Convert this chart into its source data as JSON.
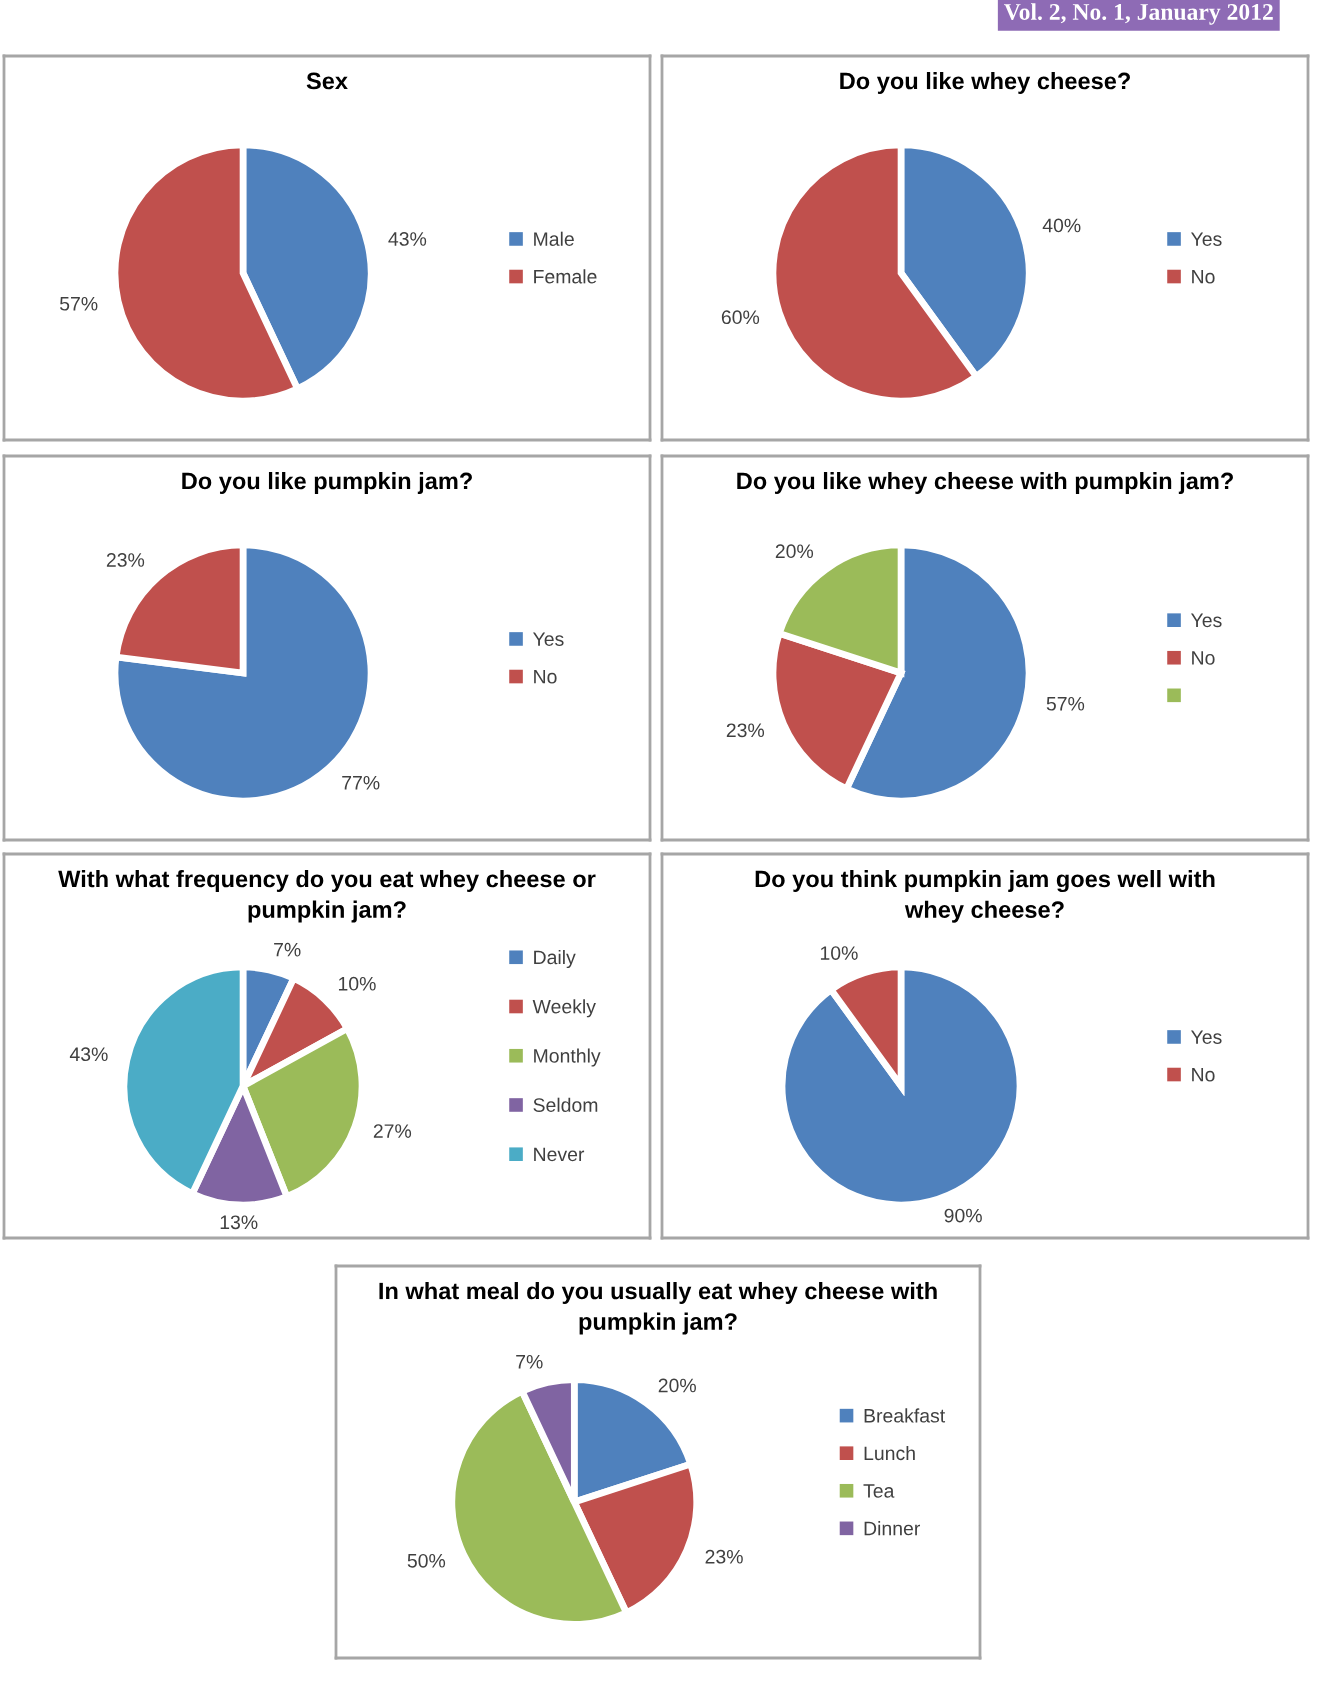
{
  "chart_data": [
    {
      "type": "pie",
      "title": "Sex",
      "categories": [
        "Male",
        "Female"
      ],
      "values": [
        43,
        57
      ],
      "colors": [
        "#4f81bd",
        "#c0504d"
      ],
      "value_labels": [
        "43%",
        "57%"
      ],
      "legend": "right",
      "annotations": [
        "Vol. 2, No. 1, January 2012"
      ]
    },
    {
      "type": "pie",
      "title": "Do you like whey cheese?",
      "categories": [
        "Yes",
        "No"
      ],
      "values": [
        40,
        60
      ],
      "colors": [
        "#4f81bd",
        "#c0504d"
      ],
      "value_labels": [
        "40%",
        "60%"
      ],
      "legend": "right"
    },
    {
      "type": "pie",
      "title": "Do you like pumpkin jam?",
      "categories": [
        "Yes",
        "No"
      ],
      "values": [
        77,
        23
      ],
      "colors": [
        "#4f81bd",
        "#c0504d"
      ],
      "value_labels": [
        "77%",
        "23%"
      ],
      "legend": "right"
    },
    {
      "type": "pie",
      "title": "Do you like whey cheese with pumpkin jam?",
      "categories": [
        "Yes",
        "No",
        null
      ],
      "values": [
        57,
        23,
        20
      ],
      "colors": [
        "#4f81bd",
        "#c0504d",
        "#9bbb59"
      ],
      "value_labels": [
        "57%",
        "23%",
        "20%"
      ],
      "legend": "right"
    },
    {
      "type": "pie",
      "title": "With what frequency do you eat whey cheese or\npumpkin jam?",
      "categories": [
        "Daily",
        "Weekly",
        "Monthly",
        "Seldom",
        "Never"
      ],
      "values": [
        7,
        10,
        27,
        13,
        43
      ],
      "colors": [
        "#4f81bd",
        "#c0504d",
        "#9bbb59",
        "#8064a2",
        "#4bacc6"
      ],
      "value_labels": [
        "7%",
        "10%",
        "27%",
        "13%",
        "43%"
      ],
      "legend": "right"
    },
    {
      "type": "pie",
      "title": "Do you think pumpkin jam goes well with\nwhey cheese?",
      "categories": [
        "Yes",
        "No"
      ],
      "values": [
        90,
        10
      ],
      "colors": [
        "#4f81bd",
        "#c0504d"
      ],
      "value_labels": [
        "90%",
        "10%"
      ],
      "legend": "right"
    },
    {
      "type": "pie",
      "title": "In what meal do you usually eat whey cheese with\npumpkin jam?",
      "categories": [
        "Breakfast",
        "Lunch",
        "Tea",
        "Dinner"
      ],
      "values": [
        20,
        23,
        50,
        7
      ],
      "colors": [
        "#4f81bd",
        "#c0504d",
        "#9bbb59",
        "#8064a2"
      ],
      "value_labels": [
        "20%",
        "23%",
        "50%",
        "7%"
      ],
      "legend": "right"
    }
  ]
}
